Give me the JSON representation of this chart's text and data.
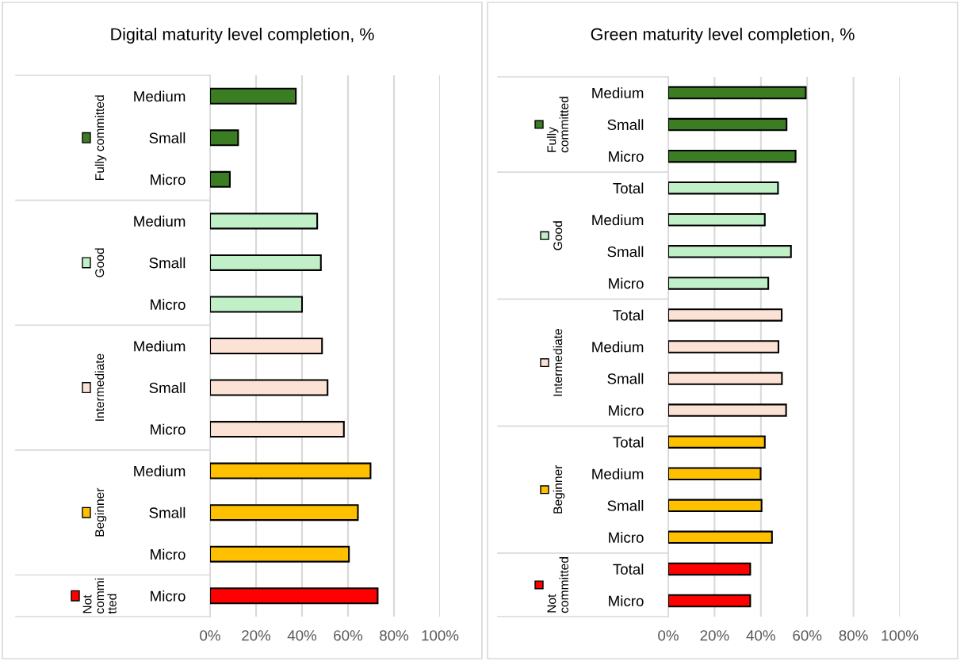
{
  "chart_data": [
    {
      "type": "bar",
      "orientation": "horizontal",
      "title": "Digital maturity level completion, %",
      "categories": [
        "Medium",
        "Small",
        "Micro",
        "Medium",
        "Small",
        "Micro",
        "Medium",
        "Small",
        "Micro",
        "Medium",
        "Small",
        "Micro",
        "Micro"
      ],
      "series": [
        {
          "name": "Fully committed",
          "color": "#3a7d22",
          "values": [
            37.3,
            12.2,
            8.6,
            null,
            null,
            null,
            null,
            null,
            null,
            null,
            null,
            null,
            null
          ]
        },
        {
          "name": "Good",
          "color": "#c1f0c8",
          "values": [
            null,
            null,
            null,
            46.6,
            48.2,
            40.0,
            null,
            null,
            null,
            null,
            null,
            null,
            null
          ]
        },
        {
          "name": "Intermediate",
          "color": "#fbe2d5",
          "values": [
            null,
            null,
            null,
            null,
            null,
            null,
            48.7,
            51.1,
            58.2,
            null,
            null,
            null,
            null
          ]
        },
        {
          "name": "Beginner",
          "color": "#ffc000",
          "values": [
            null,
            null,
            null,
            null,
            null,
            null,
            null,
            null,
            null,
            69.8,
            64.3,
            60.4,
            null
          ]
        },
        {
          "name": "Not committed",
          "color": "#ff0000",
          "values": [
            null,
            null,
            null,
            null,
            null,
            null,
            null,
            null,
            null,
            null,
            null,
            null,
            72.9
          ]
        }
      ],
      "xlim": [
        0,
        100
      ],
      "xticks": [
        {
          "value": 0,
          "label": "0%"
        },
        {
          "value": 20,
          "label": "20%"
        },
        {
          "value": 40,
          "label": "40%"
        },
        {
          "value": 60,
          "label": "60%"
        },
        {
          "value": 80,
          "label": "80%"
        },
        {
          "value": 100,
          "label": "100%"
        }
      ],
      "grid": "x",
      "legend": "left"
    },
    {
      "type": "bar",
      "orientation": "horizontal",
      "title": "Green maturity level completion, %",
      "categories": [
        "Medium",
        "Small",
        "Micro",
        "Total",
        "Medium",
        "Small",
        "Micro",
        "Total",
        "Medium",
        "Small",
        "Micro",
        "Total",
        "Medium",
        "Small",
        "Micro",
        "Total",
        "Micro"
      ],
      "series": [
        {
          "name": "Fully committed",
          "color": "#3a7d22",
          "values": [
            59.4,
            51.1,
            55.0,
            null,
            null,
            null,
            null,
            null,
            null,
            null,
            null,
            null,
            null,
            null,
            null,
            null,
            null
          ]
        },
        {
          "name": "Good",
          "color": "#c1f0c8",
          "values": [
            null,
            null,
            null,
            47.4,
            41.7,
            53.0,
            43.2,
            null,
            null,
            null,
            null,
            null,
            null,
            null,
            null,
            null,
            null
          ]
        },
        {
          "name": "Intermediate",
          "color": "#fbe2d5",
          "values": [
            null,
            null,
            null,
            null,
            null,
            null,
            null,
            49.0,
            47.6,
            49.1,
            50.9,
            null,
            null,
            null,
            null,
            null,
            null
          ]
        },
        {
          "name": "Beginner",
          "color": "#ffc000",
          "values": [
            null,
            null,
            null,
            null,
            null,
            null,
            null,
            null,
            null,
            null,
            null,
            41.7,
            39.9,
            40.3,
            44.8,
            null,
            null
          ]
        },
        {
          "name": "Not committed",
          "color": "#ff0000",
          "values": [
            null,
            null,
            null,
            null,
            null,
            null,
            null,
            null,
            null,
            null,
            null,
            null,
            null,
            null,
            null,
            35.4,
            35.4
          ]
        }
      ],
      "xlim": [
        0,
        100
      ],
      "xticks": [
        {
          "value": 0,
          "label": "0%"
        },
        {
          "value": 20,
          "label": "20%"
        },
        {
          "value": 40,
          "label": "40%"
        },
        {
          "value": 60,
          "label": "60%"
        },
        {
          "value": 80,
          "label": "80%"
        },
        {
          "value": 100,
          "label": "100%"
        }
      ],
      "grid": "x",
      "legend": "left"
    }
  ]
}
